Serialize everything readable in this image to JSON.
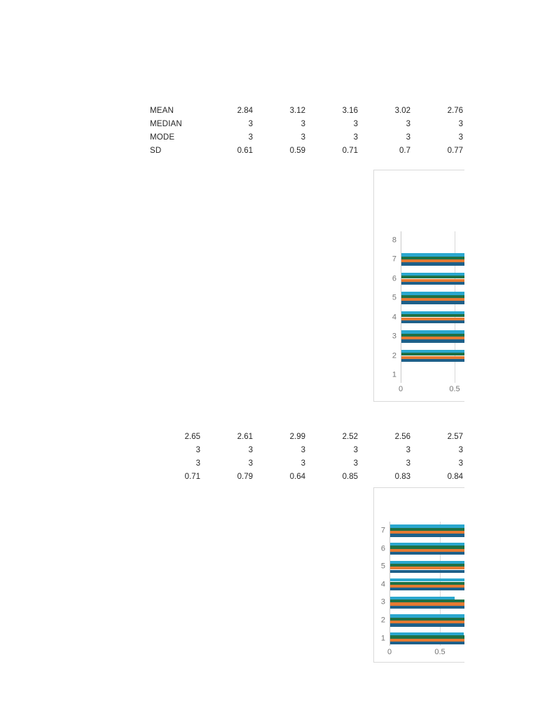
{
  "page": {
    "background": "#ffffff"
  },
  "colors": {
    "series": [
      "#2AA7CF",
      "#1E7145",
      "#E47A32",
      "#1E6089"
    ],
    "gridline": "#D9D9D9",
    "zero_axis": "#C9C9C9",
    "chart_border": "#D9D9D9",
    "axis_label": "#757575",
    "table_text": "#262626"
  },
  "table1": {
    "rows": [
      {
        "label": "MEAN",
        "values": [
          "2.84",
          "3.12",
          "3.16",
          "3.02",
          "2.76"
        ]
      },
      {
        "label": "MEDIAN",
        "values": [
          "3",
          "3",
          "3",
          "3",
          "3"
        ]
      },
      {
        "label": "MODE",
        "values": [
          "3",
          "3",
          "3",
          "3",
          "3"
        ]
      },
      {
        "label": "SD",
        "values": [
          "0.61",
          "0.59",
          "0.71",
          "0.7",
          "0.77"
        ]
      }
    ]
  },
  "table2": {
    "rows": [
      {
        "values": [
          "2.65",
          "2.61",
          "2.99",
          "2.52",
          "2.56",
          "2.57"
        ]
      },
      {
        "values": [
          "3",
          "3",
          "3",
          "3",
          "3",
          "3"
        ]
      },
      {
        "values": [
          "3",
          "3",
          "3",
          "3",
          "3",
          "3"
        ]
      },
      {
        "values": [
          "0.71",
          "0.79",
          "0.64",
          "0.85",
          "0.83",
          "0.84"
        ]
      }
    ]
  },
  "chart_data": [
    {
      "type": "bar",
      "orientation": "horizontal",
      "title": "",
      "categories": [
        8,
        7,
        6,
        5,
        4,
        3,
        2,
        1
      ],
      "series": [
        {
          "name": "light-blue",
          "color": "#2AA7CF",
          "values": [
            0,
            0.6,
            0.6,
            0.6,
            0.6,
            0.6,
            0.6,
            0
          ]
        },
        {
          "name": "green",
          "color": "#1E7145",
          "values": [
            0,
            0.6,
            0.6,
            0.6,
            0.6,
            0.6,
            0.6,
            0
          ]
        },
        {
          "name": "orange",
          "color": "#E47A32",
          "values": [
            0,
            0.6,
            0.6,
            0.6,
            0.6,
            0.6,
            0.6,
            0
          ]
        },
        {
          "name": "dark-blue",
          "color": "#1E6089",
          "values": [
            0,
            0.6,
            0.6,
            0.6,
            0.6,
            0.6,
            0.6,
            0
          ]
        }
      ],
      "x_ticks": [
        "0",
        "0.5"
      ],
      "x_tick_values": [
        0,
        0.5
      ],
      "xlim": [
        0,
        0.6
      ],
      "grid": true,
      "legend": "none (clipped)",
      "note": "chart is cut off at the right edge of the screenshot; bars of categories 7-2 run past the visible area"
    },
    {
      "type": "bar",
      "orientation": "horizontal",
      "title": "",
      "categories": [
        7,
        6,
        5,
        4,
        3,
        2,
        1
      ],
      "series": [
        {
          "name": "light-blue",
          "color": "#2AA7CF",
          "values": [
            0.75,
            0.75,
            0.75,
            0.75,
            0.64,
            0.75,
            0.73
          ]
        },
        {
          "name": "green",
          "color": "#1E7145",
          "values": [
            0.75,
            0.75,
            0.75,
            0.75,
            0.75,
            0.75,
            0.75
          ]
        },
        {
          "name": "orange",
          "color": "#E47A32",
          "values": [
            0.75,
            0.75,
            0.75,
            0.75,
            0.75,
            0.75,
            0.75
          ]
        },
        {
          "name": "dark-blue",
          "color": "#1E6089",
          "values": [
            0.75,
            0.75,
            0.75,
            0.75,
            0.75,
            0.75,
            0.75
          ]
        }
      ],
      "x_ticks": [
        "0",
        "0.5"
      ],
      "x_tick_values": [
        0,
        0.5
      ],
      "xlim": [
        0,
        0.75
      ],
      "grid": true,
      "legend": "none (clipped)",
      "note": "chart is cut off at the right edge of the screenshot; most bars run past the visible area"
    }
  ]
}
